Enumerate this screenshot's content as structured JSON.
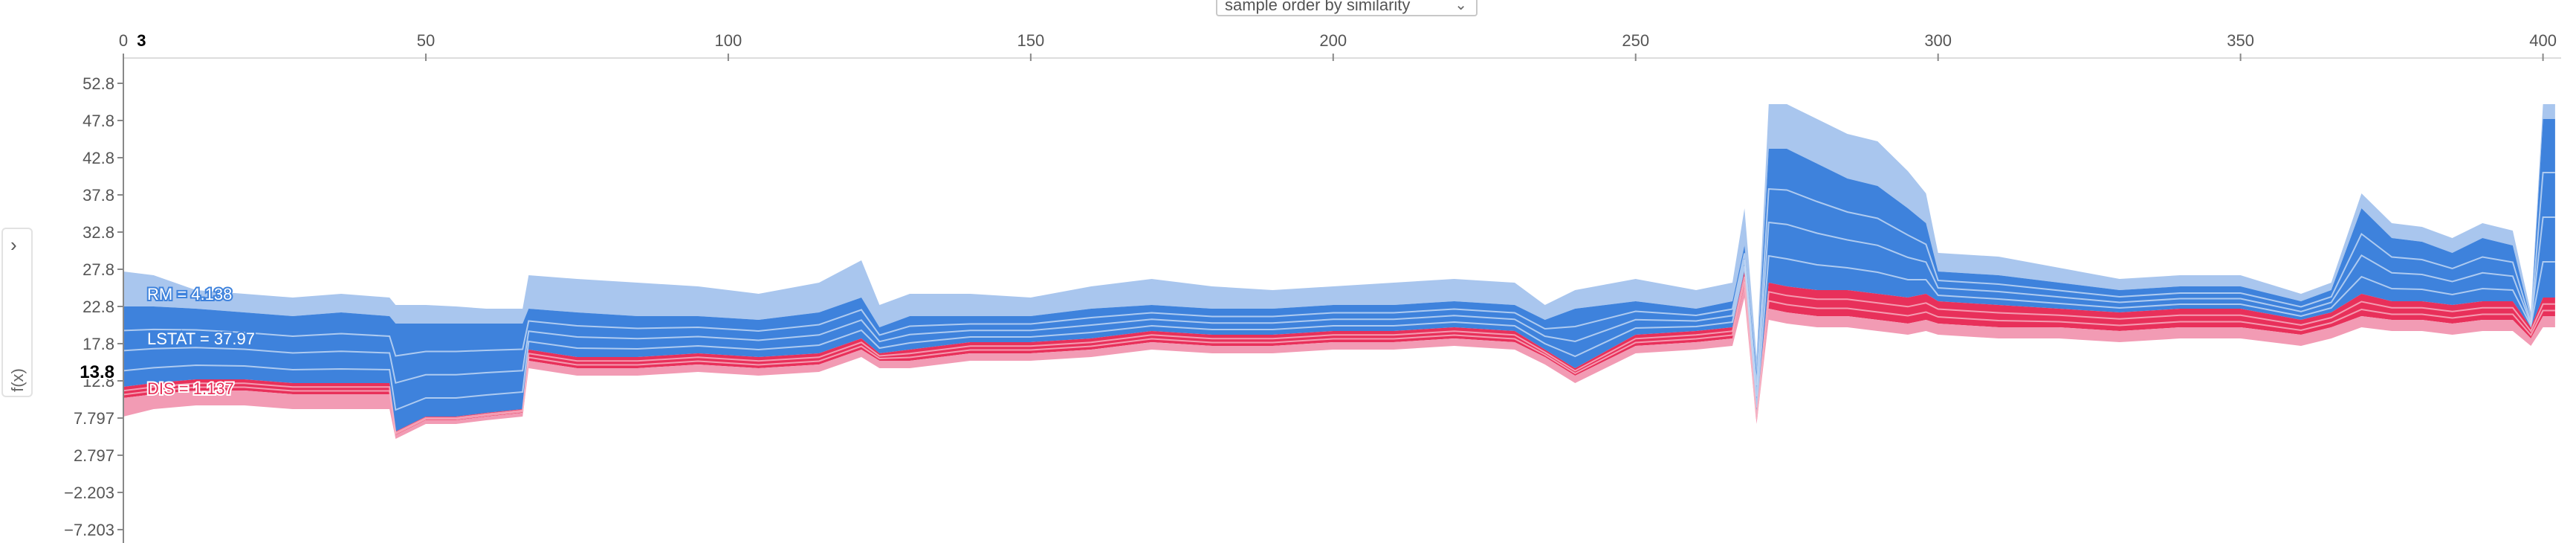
{
  "controls": {
    "ordering_select": {
      "value": "sample order by similarity"
    },
    "fx_toggle": {
      "label": "f(x)"
    }
  },
  "colors": {
    "positive": "#e8305a",
    "positive_light": "#f29bb4",
    "negative": "#3e82dc",
    "negative_light": "#a9c6ee",
    "axis": "#888888",
    "text": "#555555"
  },
  "chart_data": {
    "type": "area",
    "xlim": [
      0,
      403
    ],
    "x_ticks": [
      0,
      50,
      100,
      150,
      200,
      250,
      300,
      350,
      400
    ],
    "x_highlight": "3",
    "ylim": [
      -9,
      56
    ],
    "y_ticks": [
      "52.8",
      "47.8",
      "42.8",
      "37.8",
      "32.8",
      "27.8",
      "22.8",
      "17.8",
      "12.8",
      "7.797",
      "2.797",
      "−2.203",
      "−7.203"
    ],
    "y_tick_values": [
      52.8,
      47.8,
      42.8,
      37.8,
      32.8,
      27.8,
      22.8,
      17.8,
      12.8,
      7.797,
      2.797,
      -2.203,
      -7.203
    ],
    "y_highlight": {
      "label": "13.8",
      "value": 13.8
    },
    "feature_labels": [
      {
        "text": "RM = 4.138",
        "value": 24.5,
        "kind": "negative"
      },
      {
        "text": "LSTAT = 37.97",
        "value": 18.5,
        "kind": "negative"
      },
      {
        "text": "DIS = 1.137",
        "value": 11.8,
        "kind": "positive"
      }
    ],
    "bands": {
      "x": [
        0,
        5,
        12,
        20,
        28,
        36,
        44,
        45,
        50,
        55,
        60,
        66,
        67,
        75,
        85,
        95,
        105,
        115,
        122,
        125,
        130,
        140,
        150,
        160,
        170,
        180,
        190,
        200,
        210,
        220,
        230,
        235,
        240,
        250,
        260,
        266,
        268,
        270,
        272,
        275,
        280,
        285,
        290,
        295,
        298,
        300,
        310,
        320,
        330,
        340,
        350,
        360,
        365,
        370,
        375,
        380,
        385,
        390,
        395,
        398,
        400,
        402
      ],
      "top": [
        27.5,
        27.0,
        25.0,
        24.5,
        24.0,
        24.5,
        24.0,
        23.0,
        23.0,
        22.8,
        22.5,
        22.5,
        27.0,
        26.5,
        26.0,
        25.5,
        24.5,
        26.0,
        29.0,
        23.0,
        24.5,
        24.5,
        24.0,
        25.5,
        26.5,
        25.5,
        25.0,
        25.5,
        26.0,
        26.5,
        26.0,
        23.0,
        25.0,
        26.5,
        25.0,
        26.0,
        36.0,
        16.0,
        50.0,
        50.0,
        48.0,
        46.0,
        45.0,
        41.0,
        38.0,
        30.0,
        29.5,
        28.0,
        26.5,
        27.0,
        27.0,
        24.5,
        26.0,
        38.0,
        34.0,
        33.5,
        32.0,
        34.0,
        33.0,
        22.0,
        50.0,
        50.0
      ],
      "neg_base": [
        22.8,
        22.8,
        22.5,
        22.0,
        21.5,
        22.0,
        21.5,
        20.5,
        20.5,
        20.5,
        20.5,
        20.5,
        22.5,
        22.0,
        21.5,
        21.5,
        21.0,
        22.0,
        24.0,
        20.0,
        21.5,
        21.5,
        21.5,
        22.5,
        23.0,
        22.5,
        22.5,
        23.0,
        23.0,
        23.5,
        23.0,
        21.0,
        22.5,
        23.5,
        22.5,
        23.5,
        31.0,
        14.0,
        44.0,
        44.0,
        42.0,
        40.0,
        39.0,
        36.0,
        34.0,
        27.5,
        27.0,
        26.0,
        25.0,
        25.5,
        25.5,
        23.5,
        25.0,
        36.0,
        32.0,
        31.5,
        30.0,
        32.0,
        31.0,
        21.0,
        48.0,
        48.0
      ],
      "split": [
        12.0,
        12.5,
        13.0,
        13.0,
        12.5,
        12.5,
        12.5,
        6.0,
        8.0,
        8.0,
        8.5,
        9.0,
        17.0,
        16.0,
        16.0,
        16.5,
        16.0,
        16.5,
        18.5,
        16.5,
        17.0,
        18.0,
        18.0,
        18.5,
        19.5,
        19.0,
        19.0,
        19.5,
        19.5,
        20.0,
        19.5,
        17.0,
        14.5,
        19.0,
        19.5,
        20.0,
        27.5,
        8.0,
        26.0,
        25.5,
        25.0,
        25.0,
        24.5,
        24.0,
        24.5,
        23.5,
        23.0,
        22.5,
        22.0,
        22.5,
        22.5,
        21.0,
        22.0,
        24.5,
        23.5,
        23.5,
        23.0,
        23.5,
        23.5,
        20.0,
        24.0,
        24.0
      ],
      "pos_base": [
        10.5,
        11.0,
        11.5,
        11.5,
        11.0,
        11.0,
        11.0,
        5.5,
        7.5,
        7.5,
        8.0,
        8.5,
        15.5,
        14.5,
        14.5,
        15.0,
        14.5,
        15.0,
        17.0,
        15.5,
        15.5,
        16.5,
        16.5,
        17.0,
        18.0,
        17.5,
        17.5,
        18.0,
        18.0,
        18.5,
        18.0,
        16.0,
        13.5,
        17.5,
        18.0,
        18.5,
        25.5,
        7.5,
        22.5,
        22.0,
        21.5,
        21.5,
        21.0,
        20.5,
        21.0,
        20.5,
        20.0,
        20.0,
        19.5,
        20.0,
        20.0,
        19.0,
        20.0,
        21.5,
        21.0,
        21.0,
        20.5,
        21.0,
        21.0,
        18.5,
        21.5,
        21.5
      ],
      "bottom": [
        8.0,
        9.0,
        9.5,
        9.5,
        9.0,
        9.0,
        9.0,
        5.0,
        7.0,
        7.0,
        7.5,
        8.0,
        14.5,
        13.5,
        13.5,
        14.0,
        13.5,
        14.0,
        16.0,
        14.5,
        14.5,
        15.5,
        15.5,
        16.0,
        17.0,
        16.5,
        16.5,
        17.0,
        17.0,
        17.5,
        17.0,
        15.0,
        12.5,
        16.5,
        17.0,
        17.5,
        24.0,
        7.0,
        21.0,
        20.5,
        20.0,
        20.0,
        19.5,
        19.0,
        19.5,
        19.0,
        18.5,
        18.5,
        18.0,
        18.5,
        18.5,
        17.5,
        18.5,
        20.0,
        19.5,
        19.5,
        19.0,
        19.5,
        19.5,
        17.5,
        20.0,
        20.0
      ]
    }
  }
}
